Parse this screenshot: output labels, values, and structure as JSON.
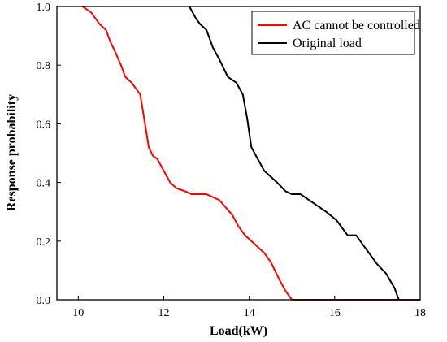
{
  "chart_data": {
    "type": "line",
    "xlabel": "Load(kW)",
    "ylabel": "Response probability",
    "xlim": [
      9.5,
      18
    ],
    "ylim": [
      0,
      1
    ],
    "xticks": [
      "10",
      "12",
      "14",
      "16",
      "18"
    ],
    "yticks": [
      "0.0",
      "0.2",
      "0.4",
      "0.6",
      "0.8",
      "1.0"
    ],
    "legend_position": "top-right",
    "series": [
      {
        "name": "AC cannot be controlled",
        "color": "#ff0000",
        "overlap_color": "#8b2500",
        "x": [
          10.1,
          10.3,
          10.4,
          10.5,
          10.65,
          10.75,
          10.85,
          11.0,
          11.1,
          11.25,
          11.35,
          11.45,
          11.55,
          11.65,
          11.75,
          11.85,
          12.0,
          12.15,
          12.3,
          12.5,
          12.65,
          12.8,
          13.0,
          13.3,
          13.6,
          13.75,
          13.9,
          14.05,
          14.2,
          14.35,
          14.5,
          14.7,
          14.85,
          15.0
        ],
        "y": [
          1.0,
          0.98,
          0.96,
          0.94,
          0.92,
          0.88,
          0.85,
          0.8,
          0.76,
          0.74,
          0.72,
          0.7,
          0.61,
          0.52,
          0.49,
          0.48,
          0.44,
          0.4,
          0.38,
          0.37,
          0.36,
          0.36,
          0.36,
          0.34,
          0.29,
          0.25,
          0.22,
          0.2,
          0.18,
          0.16,
          0.13,
          0.07,
          0.03,
          0.0
        ]
      },
      {
        "name": "Original load",
        "color": "#000000",
        "x": [
          12.6,
          12.75,
          12.85,
          13.0,
          13.15,
          13.3,
          13.5,
          13.7,
          13.85,
          13.95,
          14.05,
          14.2,
          14.35,
          14.5,
          14.65,
          14.85,
          15.0,
          15.2,
          15.4,
          15.6,
          15.8,
          16.05,
          16.2,
          16.3,
          16.5,
          16.6,
          16.75,
          17.0,
          17.2,
          17.4,
          17.5
        ],
        "y": [
          1.0,
          0.96,
          0.94,
          0.92,
          0.86,
          0.82,
          0.76,
          0.74,
          0.7,
          0.62,
          0.52,
          0.48,
          0.44,
          0.42,
          0.4,
          0.37,
          0.36,
          0.36,
          0.34,
          0.32,
          0.3,
          0.27,
          0.24,
          0.22,
          0.22,
          0.2,
          0.17,
          0.12,
          0.09,
          0.04,
          0.0
        ]
      }
    ]
  }
}
